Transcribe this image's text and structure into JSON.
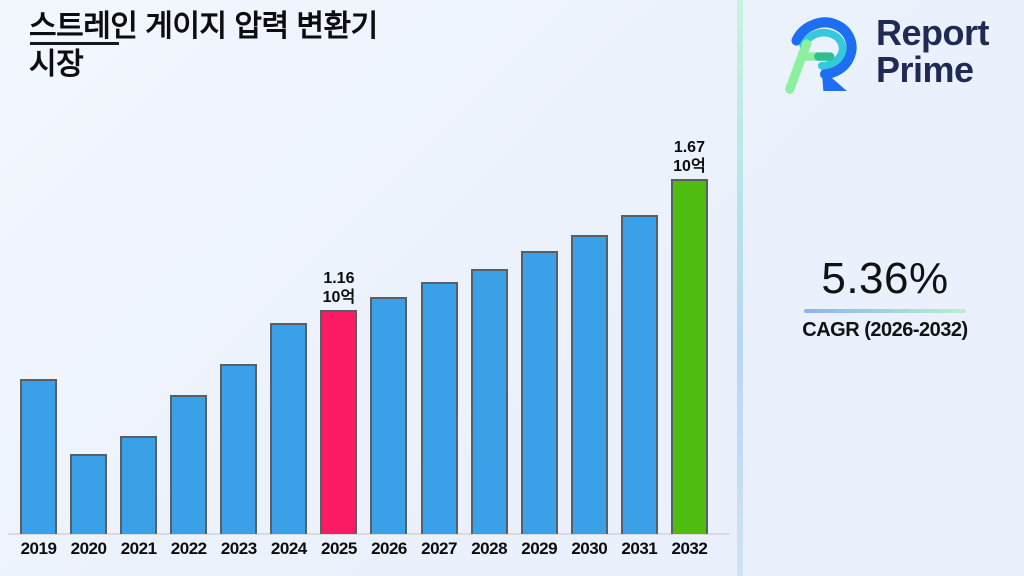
{
  "page": {
    "background": "#ecf1fb",
    "title_line1": "스트레인 게이지 압력 변환기",
    "title_line2": "시장"
  },
  "logo": {
    "icon": "report-prime-r-mark",
    "name_line1": "Report",
    "name_line2": "Prime",
    "text_color": "#1f2b55",
    "icon_colors": {
      "blue": "#1d6ef2",
      "cyan": "#35c9dc",
      "mint": "#8df0a0",
      "teal": "#2fbf8f"
    }
  },
  "cagr": {
    "value": "5.36%",
    "label": "CAGR (2026-2032)",
    "underline_gradient_left": "#8fb3f0",
    "underline_gradient_right": "#b9f0c8"
  },
  "chart_data": {
    "type": "bar",
    "title": "스트레인 게이지 압력 변환기 시장",
    "unit": "10억",
    "categories": [
      "2019",
      "2020",
      "2021",
      "2022",
      "2023",
      "2024",
      "2025",
      "2026",
      "2027",
      "2028",
      "2029",
      "2030",
      "2031",
      "2032"
    ],
    "values": [
      0.89,
      0.6,
      0.67,
      0.83,
      0.95,
      1.11,
      1.16,
      1.21,
      1.27,
      1.32,
      1.39,
      1.45,
      1.53,
      1.67
    ],
    "labeled_points": [
      {
        "year": "2025",
        "lines": [
          "1.16",
          "10억"
        ]
      },
      {
        "year": "2032",
        "lines": [
          "1.67",
          "10억"
        ]
      }
    ],
    "highlight_year": "2025",
    "final_year": "2032",
    "colors": {
      "default": "#3aa0e8",
      "highlight": "#fb1b62",
      "final": "#4fbd10",
      "bar_border": "#595f66"
    },
    "ylim": [
      0.29,
      1.75
    ],
    "grid": false,
    "legend": false,
    "xlabel": "",
    "ylabel": ""
  }
}
